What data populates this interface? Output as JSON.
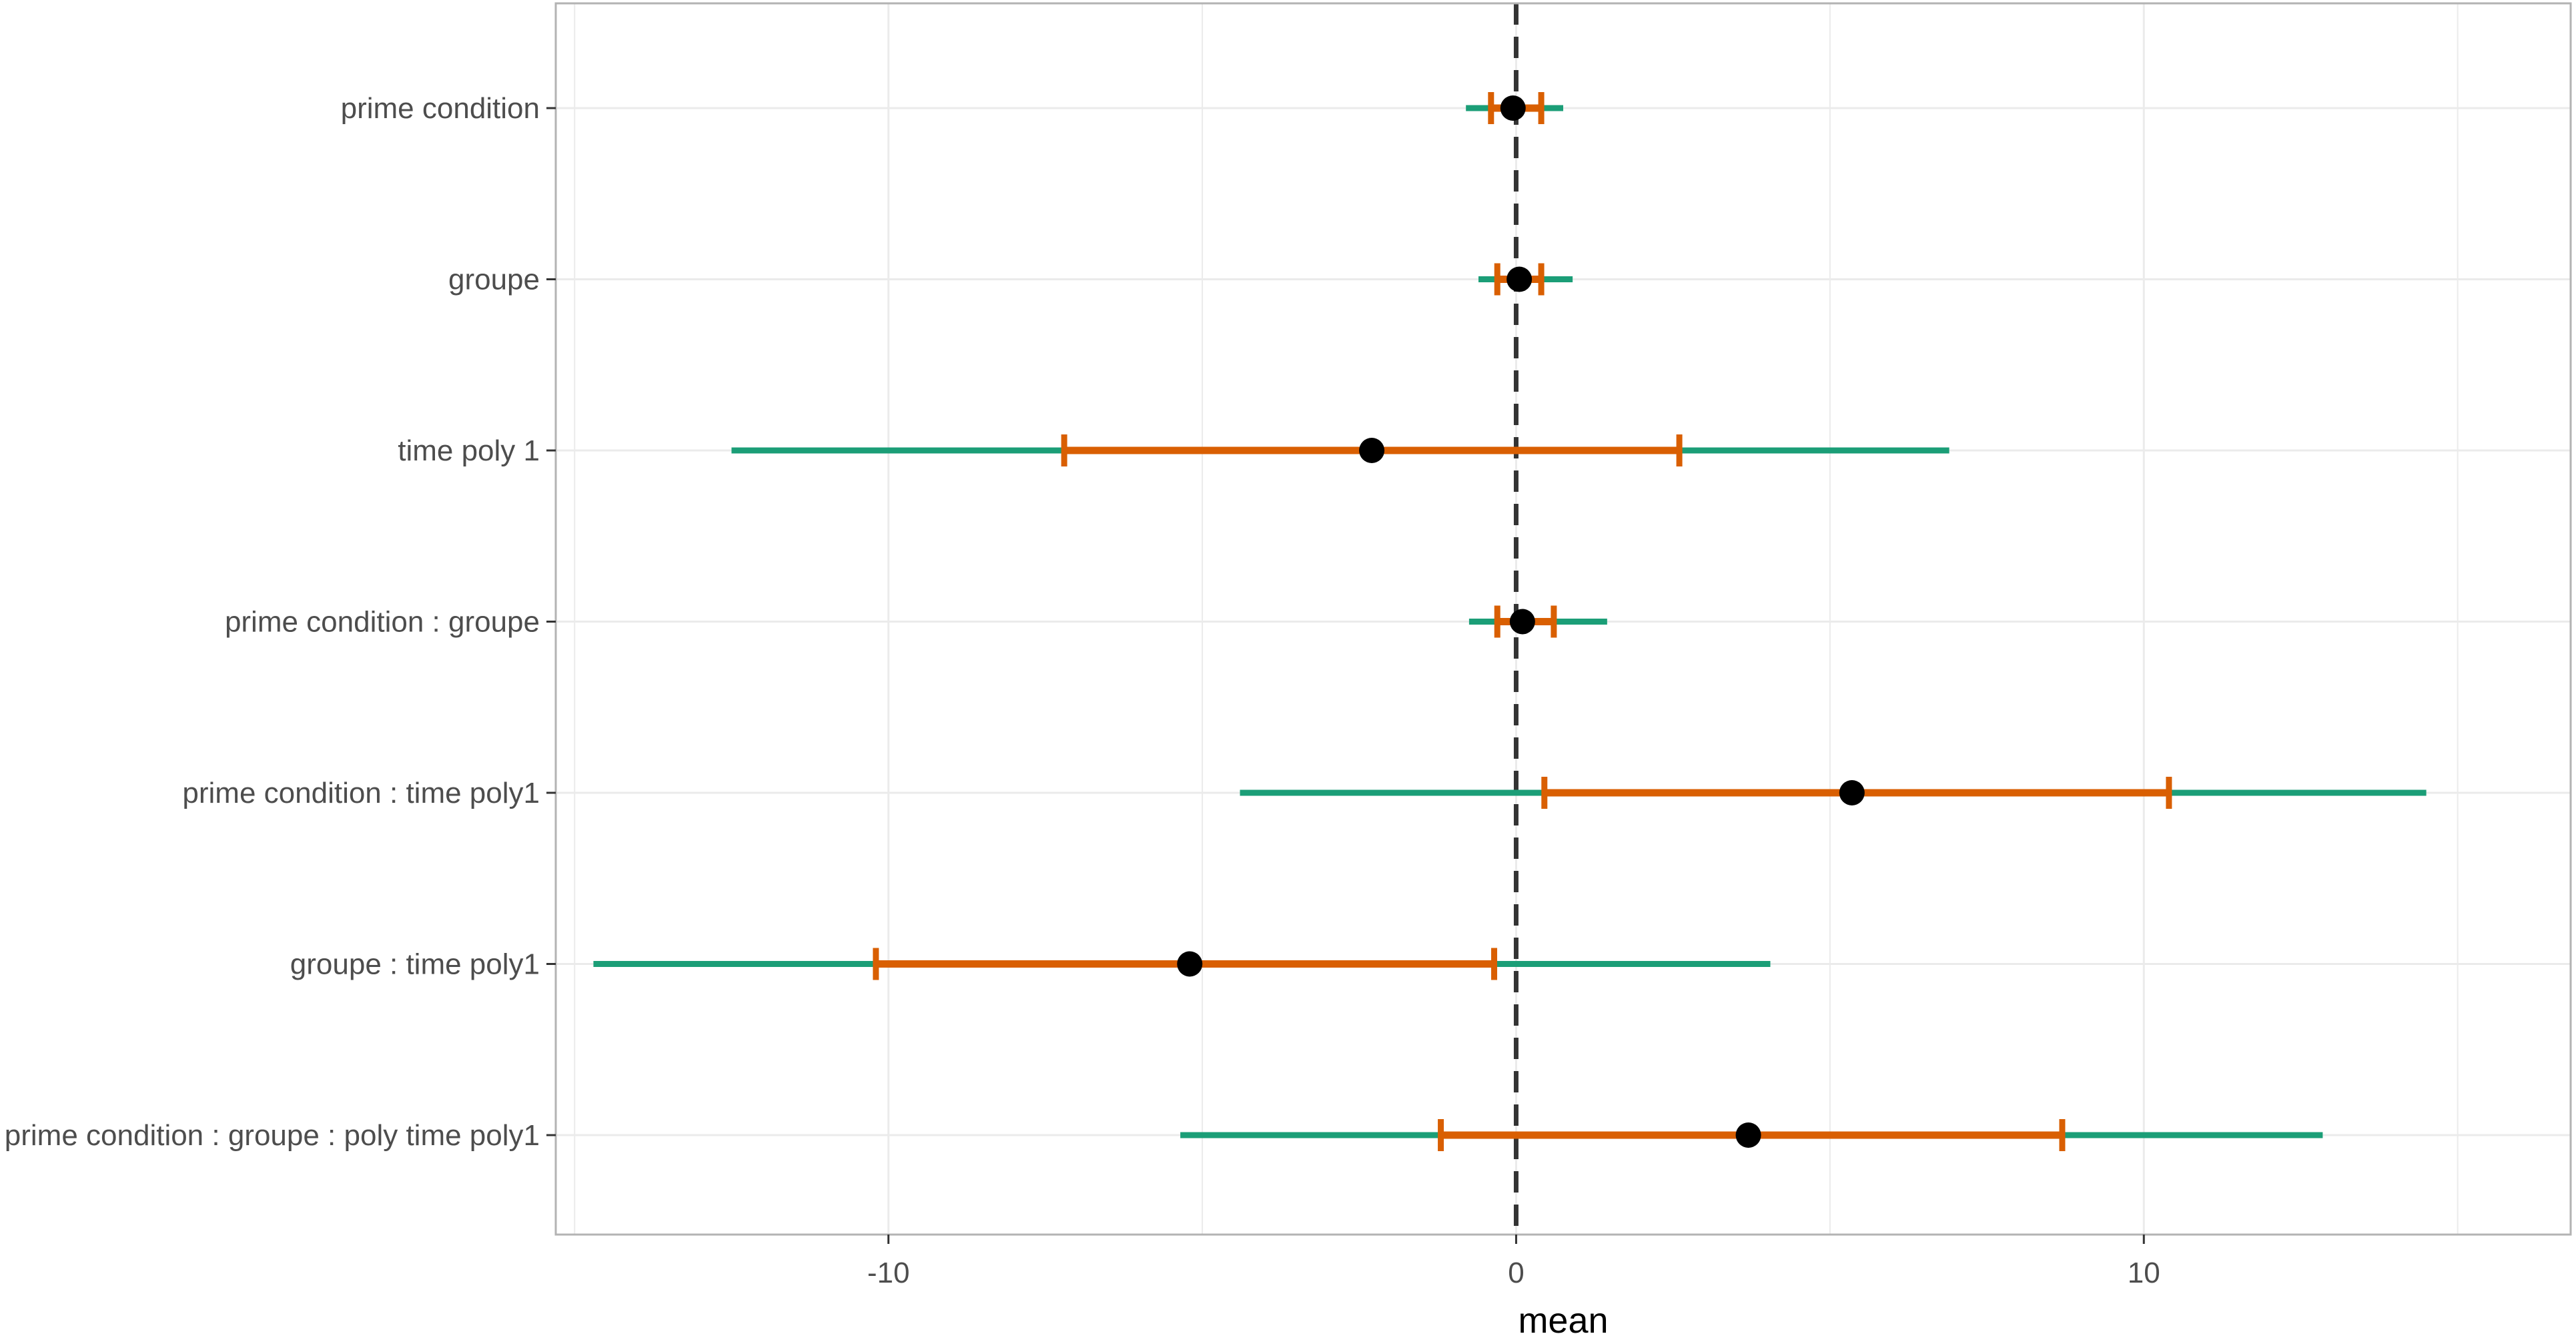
{
  "chart_data": {
    "type": "forest",
    "xlabel": "mean",
    "ylabel": "",
    "title": "",
    "xlim": [
      -15.3,
      16.8
    ],
    "x_ticks": [
      -10,
      0,
      10
    ],
    "x_tick_labels": [
      "-10",
      "0",
      "10"
    ],
    "reference_line": 0,
    "grid": true,
    "colors": {
      "outer_interval": "#1b9e77",
      "inner_interval": "#d95f02",
      "point": "#000000",
      "reference_line": "#333333",
      "grid": "#ebebeb",
      "panel_border": "#b3b3b3"
    },
    "rows": [
      {
        "label": "prime condition",
        "mean": -0.05,
        "inner": [
          -0.4,
          0.4
        ],
        "outer": [
          -0.8,
          0.75
        ]
      },
      {
        "label": "groupe",
        "mean": 0.05,
        "inner": [
          -0.3,
          0.4
        ],
        "outer": [
          -0.6,
          0.9
        ]
      },
      {
        "label": "time poly 1",
        "mean": -2.3,
        "inner": [
          -7.2,
          2.6
        ],
        "outer": [
          -12.5,
          6.9
        ]
      },
      {
        "label": "prime condition : groupe",
        "mean": 0.1,
        "inner": [
          -0.3,
          0.6
        ],
        "outer": [
          -0.75,
          1.45
        ]
      },
      {
        "label": "prime condition : time poly1",
        "mean": 5.35,
        "inner": [
          0.45,
          10.4
        ],
        "outer": [
          -4.4,
          14.5
        ]
      },
      {
        "label": "groupe : time poly1",
        "mean": -5.2,
        "inner": [
          -10.2,
          -0.35
        ],
        "outer": [
          -14.7,
          4.05
        ]
      },
      {
        "label": "prime condition : groupe : poly time poly1",
        "mean": 3.7,
        "inner": [
          -1.2,
          8.7
        ],
        "outer": [
          -5.35,
          12.85
        ]
      }
    ]
  }
}
